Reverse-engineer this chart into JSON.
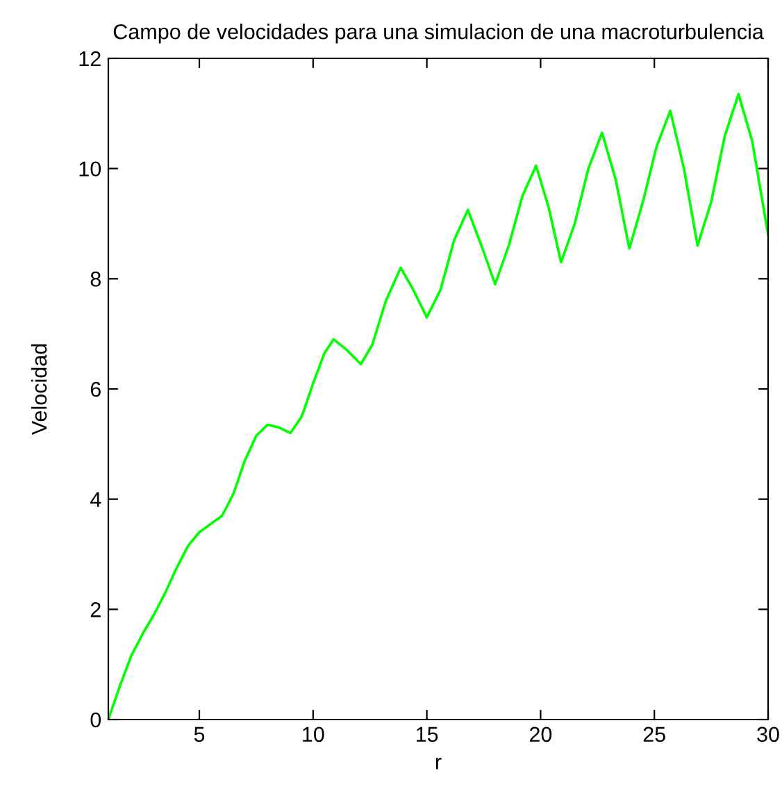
{
  "chart_data": {
    "type": "line",
    "title": "Campo de velocidades para una simulacion de una macroturbulencia",
    "xlabel": "r",
    "ylabel": "Velocidad",
    "x": [
      1,
      1.5,
      2,
      2.5,
      3,
      3.5,
      4,
      4.5,
      5,
      5.5,
      6,
      6.5,
      7,
      7.5,
      8,
      8.5,
      9,
      9.5,
      10,
      10.5,
      10.9,
      11.5,
      12.1,
      12.6,
      13.2,
      13.85,
      14.4,
      15.0,
      15.6,
      16.2,
      16.8,
      17.4,
      18.0,
      18.6,
      19.2,
      19.8,
      20.35,
      20.9,
      21.5,
      22.1,
      22.7,
      23.3,
      23.9,
      24.5,
      25.1,
      25.7,
      26.3,
      26.9,
      27.5,
      28.1,
      28.7,
      29.3,
      30
    ],
    "series": [
      {
        "color": "#00ff00",
        "values": [
          0,
          0.6,
          1.15,
          1.55,
          1.9,
          2.3,
          2.75,
          3.15,
          3.4,
          3.55,
          3.7,
          4.1,
          4.7,
          5.15,
          5.35,
          5.3,
          5.2,
          5.5,
          6.1,
          6.65,
          6.9,
          6.7,
          6.45,
          6.8,
          7.6,
          8.2,
          7.8,
          7.3,
          7.8,
          8.7,
          9.25,
          8.6,
          7.9,
          8.6,
          9.5,
          10.05,
          9.3,
          8.3,
          9.0,
          10.0,
          10.65,
          9.8,
          8.55,
          9.4,
          10.4,
          11.05,
          10.0,
          8.6,
          9.4,
          10.6,
          11.35,
          10.5,
          8.8
        ]
      }
    ],
    "xlim": [
      1,
      30
    ],
    "ylim": [
      0,
      12
    ],
    "xticks": [
      5,
      10,
      15,
      20,
      25,
      30
    ],
    "yticks": [
      0,
      2,
      4,
      6,
      8,
      10,
      12
    ],
    "grid": false,
    "legend": false,
    "marker": "none",
    "line_style": "solid"
  }
}
